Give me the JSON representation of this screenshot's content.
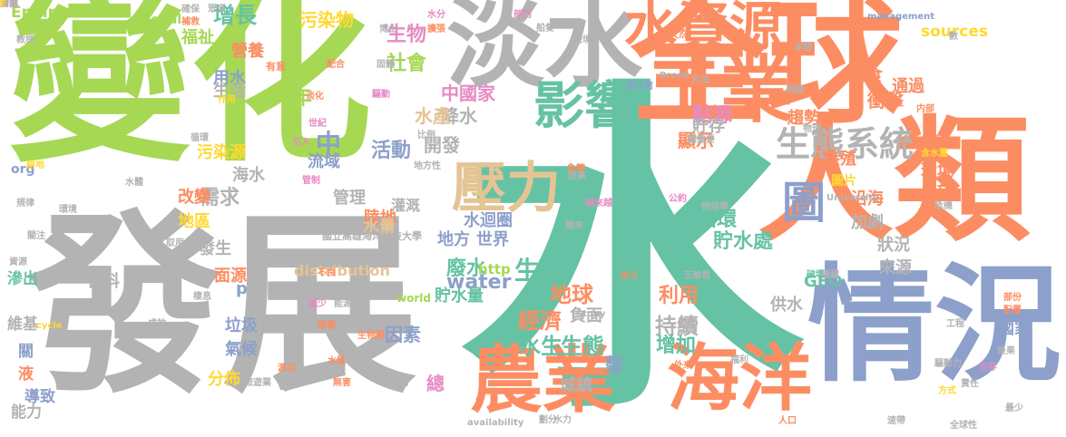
{
  "palette": {
    "green": "#66c2a5",
    "orange": "#fc8d62",
    "blue": "#8da0cb",
    "pink": "#e78ac3",
    "lime": "#a6d854",
    "yellow": "#ffd92f",
    "tan": "#e5c494",
    "gray": "#b3b3b3"
  },
  "words": [
    {
      "text": "水",
      "color": "#66c2a5"
    },
    {
      "text": "變化",
      "color": "#a6d854"
    },
    {
      "text": "發展",
      "color": "#b3b3b3"
    },
    {
      "text": "全球",
      "color": "#fc8d62"
    },
    {
      "text": "人類",
      "color": "#fc8d62"
    },
    {
      "text": "情況",
      "color": "#8da0cb"
    },
    {
      "text": "淡水",
      "color": "#b3b3b3"
    },
    {
      "text": "水資源",
      "color": "#fc8d62"
    },
    {
      "text": "工業",
      "color": "#fc8d62"
    },
    {
      "text": "海洋",
      "color": "#fc8d62"
    },
    {
      "text": "農業",
      "color": "#fc8d62"
    },
    {
      "text": "影響",
      "color": "#66c2a5"
    },
    {
      "text": "壓力",
      "color": "#e5c494"
    },
    {
      "text": "圖",
      "color": "#8da0cb"
    },
    {
      "text": "生態系統",
      "color": "#b3b3b3"
    },
    {
      "text": "Environment",
      "color": "#a6d854"
    },
    {
      "text": "Global",
      "color": "#a6d854"
    },
    {
      "text": "增長",
      "color": "#66c2a5"
    },
    {
      "text": "污染物",
      "color": "#ffd92f"
    },
    {
      "text": "生物",
      "color": "#e78ac3"
    },
    {
      "text": "社會",
      "color": "#a6d854"
    },
    {
      "text": "福祉",
      "color": "#a6d854"
    },
    {
      "text": "營養",
      "color": "#fc8d62"
    },
    {
      "text": "用水",
      "color": "#8da0cb"
    },
    {
      "text": "生活",
      "color": "#b3b3b3"
    },
    {
      "text": "年",
      "color": "#a6d854"
    },
    {
      "text": "中國家",
      "color": "#e78ac3"
    },
    {
      "text": "降水",
      "color": "#b3b3b3"
    },
    {
      "text": "水產",
      "color": "#e5c494"
    },
    {
      "text": "中",
      "color": "#8da0cb"
    },
    {
      "text": "活動",
      "color": "#8da0cb"
    },
    {
      "text": "開發",
      "color": "#b3b3b3"
    },
    {
      "text": "流域",
      "color": "#8da0cb"
    },
    {
      "text": "污染源",
      "color": "#ffd92f"
    },
    {
      "text": "海水",
      "color": "#b3b3b3"
    },
    {
      "text": "org",
      "color": "#8da0cb"
    },
    {
      "text": "需求",
      "color": "#b3b3b3"
    },
    {
      "text": "改變",
      "color": "#fc8d62"
    },
    {
      "text": "地區",
      "color": "#ffd92f"
    },
    {
      "text": "管理",
      "color": "#b3b3b3"
    },
    {
      "text": "陸地",
      "color": "#fc8d62"
    },
    {
      "text": "灌溉",
      "color": "#b3b3b3"
    },
    {
      "text": "水迴圈",
      "color": "#8da0cb"
    },
    {
      "text": "水量",
      "color": "#e5c494"
    },
    {
      "text": "地方",
      "color": "#8da0cb"
    },
    {
      "text": "世界",
      "color": "#8da0cb"
    },
    {
      "text": "發生",
      "color": "#b3b3b3"
    },
    {
      "text": "面源",
      "color": "#fc8d62"
    },
    {
      "text": "distribution",
      "color": "#e5c494"
    },
    {
      "text": "廢水",
      "color": "#66c2a5"
    },
    {
      "text": "http",
      "color": "#a6d854"
    },
    {
      "text": "water",
      "color": "#8da0cb"
    },
    {
      "text": "貯水量",
      "color": "#66c2a5"
    },
    {
      "text": "生產",
      "color": "#66c2a5"
    },
    {
      "text": "地球",
      "color": "#fc8d62"
    },
    {
      "text": "經濟",
      "color": "#fc8d62"
    },
    {
      "text": "負面",
      "color": "#b3b3b3"
    },
    {
      "text": "因素",
      "color": "#8da0cb"
    },
    {
      "text": "水生",
      "color": "#66c2a5"
    },
    {
      "text": "生態",
      "color": "#66c2a5"
    },
    {
      "text": "持續",
      "color": "#b3b3b3"
    },
    {
      "text": "整",
      "color": "#8da0cb"
    },
    {
      "text": "城鎮",
      "color": "#b3b3b3"
    },
    {
      "text": "增加",
      "color": "#66c2a5"
    },
    {
      "text": "利用",
      "color": "#fc8d62"
    },
    {
      "text": "GEO",
      "color": "#66c2a5"
    },
    {
      "text": "貯水處",
      "color": "#66c2a5"
    },
    {
      "text": "循環",
      "color": "#66c2a5"
    },
    {
      "text": "加劇",
      "color": "#b3b3b3"
    },
    {
      "text": "沿海",
      "color": "#fc8d62"
    },
    {
      "text": "圖片",
      "color": "#ffd92f"
    },
    {
      "text": "狀況",
      "color": "#b3b3b3"
    },
    {
      "text": "來源",
      "color": "#b3b3b3"
    },
    {
      "text": "供水",
      "color": "#b3b3b3"
    },
    {
      "text": "養殖",
      "color": "#fc8d62"
    },
    {
      "text": "環境",
      "color": "#fc8d62"
    },
    {
      "text": "展望",
      "color": "#fc8d62"
    },
    {
      "text": "顯示",
      "color": "#fc8d62"
    },
    {
      "text": "點源",
      "color": "#e78ac3"
    },
    {
      "text": "貯存",
      "color": "#b3b3b3"
    },
    {
      "text": "趨勢",
      "color": "#fc8d62"
    },
    {
      "text": "衝擊",
      "color": "#fc8d62"
    },
    {
      "text": "通過",
      "color": "#fc8d62"
    },
    {
      "text": "糧食",
      "color": "#fc8d62"
    },
    {
      "text": "sources",
      "color": "#ffd92f"
    },
    {
      "text": "百科",
      "color": "#b3b3b3"
    },
    {
      "text": "滲出",
      "color": "#66c2a5"
    },
    {
      "text": "維基",
      "color": "#b3b3b3"
    },
    {
      "text": "關",
      "color": "#8da0cb"
    },
    {
      "text": "液",
      "color": "#fc8d62"
    },
    {
      "text": "導致",
      "color": "#8da0cb"
    },
    {
      "text": "能力",
      "color": "#b3b3b3"
    },
    {
      "text": "垃圾",
      "color": "#8da0cb"
    },
    {
      "text": "氣候",
      "color": "#8da0cb"
    },
    {
      "text": "分佈",
      "color": "#ffd92f"
    },
    {
      "text": "國家",
      "color": "#8da0cb"
    },
    {
      "text": "總",
      "color": "#e78ac3"
    },
    {
      "text": "p",
      "color": "#8da0cb"
    },
    {
      "text": "world",
      "color": "#a6d854"
    },
    {
      "text": "management",
      "color": "#8da0cb"
    },
    {
      "text": "University",
      "color": "#b3b3b3"
    },
    {
      "text": "Stony",
      "color": "#b3b3b3"
    },
    {
      "text": "Brook",
      "color": "#b3b3b3"
    },
    {
      "text": "availability",
      "color": "#b3b3b3"
    },
    {
      "text": "cycle",
      "color": "#ffd92f"
    },
    {
      "text": "國立高雄海洋科技大學",
      "color": "#b3b3b3"
    },
    {
      "text": "確保",
      "color": "#b3b3b3"
    },
    {
      "text": "眾多",
      "color": "#b3b3b3"
    },
    {
      "text": "補救",
      "color": "#fc8d62"
    },
    {
      "text": "教授",
      "color": "#b3b3b3"
    },
    {
      "text": "作用",
      "color": "#ffd92f"
    },
    {
      "text": "配合",
      "color": "#fc8d62"
    },
    {
      "text": "固體",
      "color": "#b3b3b3"
    },
    {
      "text": "博士",
      "color": "#b3b3b3"
    },
    {
      "text": "擴張",
      "color": "#fc8d62"
    },
    {
      "text": "水分",
      "color": "#e78ac3"
    },
    {
      "text": "部門",
      "color": "#e78ac3"
    },
    {
      "text": "船隻",
      "color": "#b3b3b3"
    },
    {
      "text": "跨境",
      "color": "#b3b3b3"
    },
    {
      "text": "方法",
      "color": "#b3b3b3"
    },
    {
      "text": "張仆君",
      "color": "#8da0cb"
    },
    {
      "text": "冰帽",
      "color": "#b3b3b3"
    },
    {
      "text": "數",
      "color": "#b3b3b3"
    },
    {
      "text": "物理",
      "color": "#b3b3b3"
    },
    {
      "text": "美國",
      "color": "#b3b3b3"
    },
    {
      "text": "内部",
      "color": "#fc8d62"
    },
    {
      "text": "關重要",
      "color": "#b3b3b3"
    },
    {
      "text": "永庫",
      "color": "#fc8d62"
    },
    {
      "text": "含水量",
      "color": "#ffd92f"
    },
    {
      "text": "破壞",
      "color": "#66c2a5"
    },
    {
      "text": "危機",
      "color": "#b3b3b3"
    },
    {
      "text": "物理學",
      "color": "#b3b3b3"
    },
    {
      "text": "公約",
      "color": "#e78ac3"
    },
    {
      "text": "王瑜君",
      "color": "#b3b3b3"
    },
    {
      "text": "提高",
      "color": "#b3b3b3"
    },
    {
      "text": "魚類",
      "color": "#fc8d62"
    },
    {
      "text": "越來越",
      "color": "#e78ac3"
    },
    {
      "text": "需來",
      "color": "#b3b3b3"
    },
    {
      "text": "管制",
      "color": "#e78ac3"
    },
    {
      "text": "地方性",
      "color": "#b3b3b3"
    },
    {
      "text": "引入",
      "color": "#e78ac3"
    },
    {
      "text": "比例",
      "color": "#b3b3b3"
    },
    {
      "text": "驅動",
      "color": "#e78ac3"
    },
    {
      "text": "淡化",
      "color": "#fc8d62"
    },
    {
      "text": "世紀",
      "color": "#e78ac3"
    },
    {
      "text": "循環",
      "color": "#b3b3b3"
    },
    {
      "text": "水體",
      "color": "#b3b3b3"
    },
    {
      "text": "耕地",
      "color": "#ffd92f"
    },
    {
      "text": "規律",
      "color": "#b3b3b3"
    },
    {
      "text": "環境",
      "color": "#b3b3b3"
    },
    {
      "text": "關注",
      "color": "#b3b3b3"
    },
    {
      "text": "取用",
      "color": "#b3b3b3"
    },
    {
      "text": "資源",
      "color": "#b3b3b3"
    },
    {
      "text": "不良",
      "color": "#fc8d62"
    },
    {
      "text": "棲息",
      "color": "#b3b3b3"
    },
    {
      "text": "成效",
      "color": "#b3b3b3"
    },
    {
      "text": "減少",
      "color": "#e78ac3"
    },
    {
      "text": "能源",
      "color": "#b3b3b3"
    },
    {
      "text": "發電",
      "color": "#fc8d62"
    },
    {
      "text": "生物圈",
      "color": "#fc8d62"
    },
    {
      "text": "水質",
      "color": "#fc8d62"
    },
    {
      "text": "無害",
      "color": "#fc8d62"
    },
    {
      "text": "形式",
      "color": "#b3b3b3"
    },
    {
      "text": "少",
      "color": "#fc8d62"
    },
    {
      "text": "劃分",
      "color": "#b3b3b3"
    },
    {
      "text": "水力",
      "color": "#b3b3b3"
    },
    {
      "text": "思考",
      "color": "#b3b3b3"
    },
    {
      "text": "福利",
      "color": "#b3b3b3"
    },
    {
      "text": "人口",
      "color": "#fc8d62"
    },
    {
      "text": "外來",
      "color": "#fc8d62"
    },
    {
      "text": "方式",
      "color": "#ffd92f"
    },
    {
      "text": "速帶",
      "color": "#b3b3b3"
    },
    {
      "text": "全球性",
      "color": "#b3b3b3"
    },
    {
      "text": "責任",
      "color": "#b3b3b3"
    },
    {
      "text": "最少",
      "color": "#b3b3b3"
    },
    {
      "text": "生存",
      "color": "#e78ac3"
    },
    {
      "text": "驅動力",
      "color": "#b3b3b3"
    },
    {
      "text": "工程",
      "color": "#b3b3b3"
    },
    {
      "text": "後果",
      "color": "#b3b3b3"
    },
    {
      "text": "部份",
      "color": "#fc8d62"
    },
    {
      "text": "配置",
      "color": "#fc8d62"
    },
    {
      "text": "隱藏",
      "color": "#b3b3b3"
    },
    {
      "text": "冰川",
      "color": "#fc8d62"
    },
    {
      "text": "源自",
      "color": "#fc8d62"
    },
    {
      "text": "旅遊業",
      "color": "#b3b3b3"
    },
    {
      "text": "有意",
      "color": "#fc8d62"
    },
    {
      "text": "天然",
      "color": "#fc8d62"
    },
    {
      "text": "助益",
      "color": "#e78ac3"
    },
    {
      "text": "降雨",
      "color": "#b3b3b3"
    },
    {
      "text": "發掉",
      "color": "#b3b3b3"
    },
    {
      "text": "S",
      "color": "#fc8d62"
    },
    {
      "text": "E",
      "color": "#ffd92f"
    }
  ]
}
